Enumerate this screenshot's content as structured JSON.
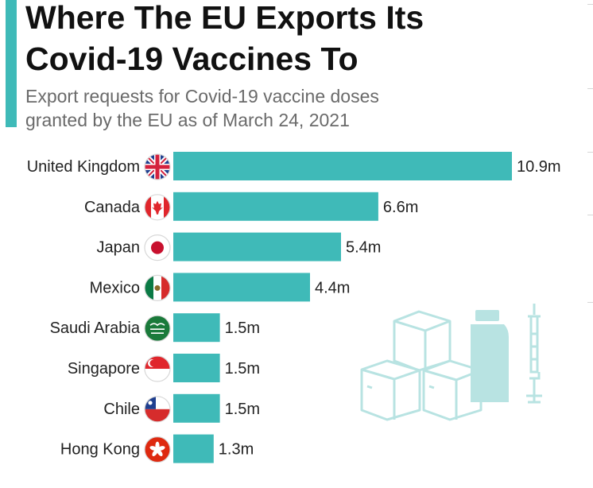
{
  "header": {
    "title_line1": "Where The EU Exports Its",
    "title_line2": "Covid-19 Vaccines To",
    "subtitle_line1": "Export requests for Covid-19 vaccine doses",
    "subtitle_line2": "granted by the EU as of March 24, 2021"
  },
  "colors": {
    "bar": "#3fbab8",
    "accent": "#3fbab8",
    "illustration": "#b8e3e2"
  },
  "chart_data": {
    "type": "bar",
    "orientation": "horizontal",
    "title": "Where The EU Exports Its Covid-19 Vaccines To",
    "subtitle": "Export requests for Covid-19 vaccine doses granted by the EU as of March 24, 2021",
    "unit": "million doses",
    "categories": [
      "United Kingdom",
      "Canada",
      "Japan",
      "Mexico",
      "Saudi Arabia",
      "Singapore",
      "Chile",
      "Hong Kong"
    ],
    "values": [
      10.9,
      6.6,
      5.4,
      4.4,
      1.5,
      1.5,
      1.5,
      1.3
    ],
    "value_labels": [
      "10.9m",
      "6.6m",
      "5.4m",
      "4.4m",
      "1.5m",
      "1.5m",
      "1.5m",
      "1.3m"
    ],
    "flags": [
      "uk-flag-icon",
      "canada-flag-icon",
      "japan-flag-icon",
      "mexico-flag-icon",
      "saudi-arabia-flag-icon",
      "singapore-flag-icon",
      "chile-flag-icon",
      "hong-kong-flag-icon"
    ],
    "xlim": [
      0,
      10.9
    ],
    "grid": false
  }
}
